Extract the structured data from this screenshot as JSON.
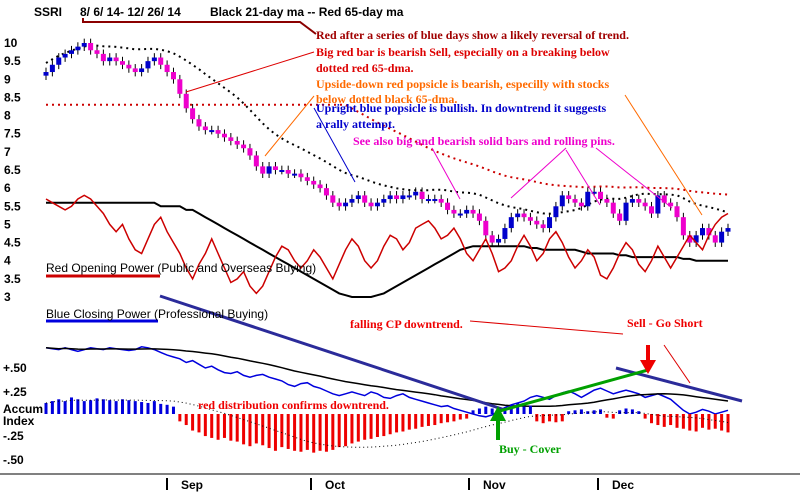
{
  "chart_data": {
    "type": "candlestick",
    "title": "SSRI  8/ 6/ 14- 12/ 26/ 14   Black 21-day ma --  Red 65-day ma",
    "ticker": "SSRI",
    "date_range": "8/ 6/ 14- 12/ 26/ 14",
    "legend_ma": "Black 21-day ma --  Red 65-day ma",
    "price_axis": {
      "ylim": [
        2.5,
        10.3
      ],
      "ticks": [
        "10",
        "9.5",
        "9",
        "8.5",
        "8",
        "7.5",
        "7",
        "6.5",
        "6",
        "5.5",
        "5",
        "4.5",
        "4",
        "3.5",
        "3"
      ]
    },
    "indicator_axis": {
      "ticks": [
        "+.50",
        "+.25",
        "Accum",
        "Index",
        "-.25",
        "-.50"
      ]
    },
    "months": [
      "Sep",
      "Oct",
      "Nov",
      "Dec"
    ],
    "colors": {
      "up": "#0000cc",
      "down": "#ee00cc",
      "ma65": "#cc0000",
      "ma21": "#000000",
      "cp_trend": "#2b2b9a",
      "green_trend": "#00a000"
    },
    "closes": [
      9.2,
      9.4,
      9.6,
      9.7,
      9.8,
      9.9,
      10.0,
      9.8,
      9.7,
      9.5,
      9.6,
      9.5,
      9.4,
      9.3,
      9.2,
      9.3,
      9.5,
      9.6,
      9.4,
      9.2,
      9.0,
      8.6,
      8.2,
      7.9,
      7.7,
      7.6,
      7.6,
      7.5,
      7.4,
      7.3,
      7.2,
      7.1,
      6.9,
      6.6,
      6.4,
      6.6,
      6.5,
      6.5,
      6.4,
      6.4,
      6.3,
      6.2,
      6.1,
      6.0,
      5.8,
      5.6,
      5.5,
      5.6,
      5.7,
      5.8,
      5.6,
      5.5,
      5.6,
      5.7,
      5.8,
      5.7,
      5.8,
      5.8,
      5.9,
      5.7,
      5.7,
      5.7,
      5.6,
      5.4,
      5.3,
      5.3,
      5.4,
      5.3,
      5.1,
      4.7,
      4.5,
      4.6,
      4.9,
      5.2,
      5.3,
      5.2,
      5.1,
      5.0,
      4.9,
      5.2,
      5.5,
      5.8,
      5.7,
      5.6,
      5.5,
      5.9,
      5.9,
      5.7,
      5.6,
      5.3,
      5.1,
      5.6,
      5.7,
      5.6,
      5.5,
      5.3,
      5.8,
      5.6,
      5.5,
      5.2,
      4.7,
      4.5,
      4.7,
      4.9,
      4.7,
      4.5,
      4.8,
      4.9
    ],
    "ma21": [
      5.6,
      5.6,
      5.6,
      5.6,
      5.6,
      5.6,
      5.6,
      5.6,
      5.6,
      5.6,
      5.6,
      5.6,
      5.6,
      5.6,
      5.6,
      5.6,
      5.6,
      5.6,
      5.5,
      5.5,
      5.5,
      5.5,
      5.4,
      5.4,
      5.3,
      5.2,
      5.1,
      5.0,
      4.9,
      4.8,
      4.7,
      4.6,
      4.5,
      4.4,
      4.3,
      4.2,
      4.1,
      4.0,
      3.9,
      3.8,
      3.7,
      3.6,
      3.5,
      3.4,
      3.3,
      3.2,
      3.1,
      3.05,
      3.0,
      3.0,
      3.0,
      3.0,
      3.05,
      3.1,
      3.2,
      3.3,
      3.4,
      3.5,
      3.6,
      3.7,
      3.8,
      3.9,
      4.0,
      4.1,
      4.2,
      4.3,
      4.35,
      4.4,
      4.4,
      4.4,
      4.4,
      4.4,
      4.4,
      4.4,
      4.4,
      4.4,
      4.35,
      4.35,
      4.3,
      4.3,
      4.3,
      4.3,
      4.3,
      4.3,
      4.25,
      4.2,
      4.2,
      4.2,
      4.2,
      4.2,
      4.15,
      4.15,
      4.1,
      4.1,
      4.1,
      4.1,
      4.1,
      4.1,
      4.1,
      4.1,
      4.05,
      4.05,
      4.0,
      4.0,
      4.0,
      4.0,
      4.0,
      4.0
    ],
    "opening_power": [
      5.7,
      5.6,
      5.5,
      5.4,
      5.5,
      5.7,
      5.8,
      5.7,
      5.5,
      5.3,
      5.0,
      4.8,
      5.0,
      4.6,
      4.3,
      4.2,
      4.6,
      5.0,
      5.2,
      4.8,
      4.5,
      4.2,
      3.8,
      3.5,
      3.9,
      4.2,
      4.6,
      4.2,
      3.8,
      3.4,
      3.5,
      3.7,
      3.3,
      3.1,
      3.3,
      3.7,
      4.1,
      4.4,
      4.3,
      4.0,
      3.8,
      4.0,
      4.3,
      4.1,
      3.8,
      3.5,
      3.9,
      4.3,
      4.6,
      4.4,
      4.0,
      3.8,
      4.0,
      4.4,
      4.7,
      4.6,
      4.3,
      4.5,
      4.9,
      5.0,
      5.1,
      4.9,
      4.6,
      4.7,
      4.9,
      4.6,
      4.2,
      4.0,
      4.3,
      4.6,
      4.2,
      3.7,
      3.8,
      4.0,
      4.4,
      4.7,
      4.4,
      4.0,
      4.2,
      4.6,
      4.8,
      4.5,
      4.1,
      3.8,
      4.0,
      4.3,
      4.1,
      3.6,
      3.5,
      3.8,
      4.2,
      4.5,
      4.3,
      3.9,
      3.7,
      4.0,
      4.4,
      4.1,
      3.8,
      4.1,
      4.4,
      4.7,
      4.5,
      4.3,
      4.7,
      5.0,
      5.2,
      5.3
    ],
    "closing_power": [
      0.72,
      0.71,
      0.7,
      0.72,
      0.7,
      0.68,
      0.7,
      0.72,
      0.71,
      0.7,
      0.72,
      0.71,
      0.7,
      0.69,
      0.7,
      0.73,
      0.72,
      0.7,
      0.67,
      0.64,
      0.62,
      0.6,
      0.56,
      0.58,
      0.54,
      0.5,
      0.52,
      0.48,
      0.45,
      0.44,
      0.46,
      0.42,
      0.4,
      0.42,
      0.43,
      0.4,
      0.38,
      0.36,
      0.32,
      0.3,
      0.33,
      0.34,
      0.3,
      0.28,
      0.25,
      0.22,
      0.2,
      0.22,
      0.24,
      0.22,
      0.2,
      0.24,
      0.22,
      0.18,
      0.17,
      0.2,
      0.22,
      0.18,
      0.16,
      0.14,
      0.12,
      0.1,
      0.08,
      0.09,
      0.06,
      0.04,
      0.02,
      0.0,
      -0.02,
      -0.03,
      -0.01,
      0.03,
      0.07,
      0.1,
      0.12,
      0.14,
      0.18,
      0.2,
      0.18,
      0.16,
      0.2,
      0.23,
      0.25,
      0.22,
      0.18,
      0.22,
      0.26,
      0.28,
      0.25,
      0.22,
      0.24,
      0.26,
      0.24,
      0.22,
      0.18,
      0.2,
      0.22,
      0.19,
      0.16,
      0.1,
      0.04,
      0.0,
      0.02,
      0.05,
      0.03,
      0.0,
      0.02,
      0.04
    ],
    "accum_index": [
      0.12,
      0.14,
      0.16,
      0.14,
      0.18,
      0.16,
      0.14,
      0.15,
      0.17,
      0.16,
      0.15,
      0.14,
      0.16,
      0.15,
      0.14,
      0.13,
      0.12,
      0.14,
      0.11,
      0.1,
      0.08,
      -0.08,
      -0.12,
      -0.18,
      -0.2,
      -0.24,
      -0.26,
      -0.28,
      -0.26,
      -0.29,
      -0.3,
      -0.33,
      -0.35,
      -0.32,
      -0.34,
      -0.37,
      -0.4,
      -0.36,
      -0.38,
      -0.4,
      -0.41,
      -0.39,
      -0.42,
      -0.4,
      -0.41,
      -0.39,
      -0.36,
      -0.35,
      -0.32,
      -0.3,
      -0.28,
      -0.27,
      -0.25,
      -0.24,
      -0.22,
      -0.2,
      -0.19,
      -0.17,
      -0.16,
      -0.14,
      -0.13,
      -0.12,
      -0.1,
      -0.09,
      -0.08,
      -0.06,
      -0.05,
      0.04,
      0.06,
      0.08,
      0.06,
      0.05,
      0.07,
      0.1,
      0.12,
      0.08,
      0.09,
      -0.08,
      -0.1,
      -0.08,
      -0.09,
      -0.08,
      0.03,
      0.04,
      0.05,
      0.03,
      0.04,
      0.05,
      -0.04,
      -0.05,
      0.04,
      0.06,
      0.05,
      0.03,
      -0.05,
      -0.1,
      -0.12,
      -0.14,
      -0.12,
      -0.15,
      -0.16,
      -0.18,
      -0.19,
      -0.15,
      -0.17,
      -0.16,
      -0.18,
      -0.2
    ],
    "indicator_labels": {
      "opening_power": "Red Opening Power (Public and Overseas Buying)",
      "closing_power": "Blue Closing Power (Professional Buying)"
    },
    "annotations": [
      "Red after a series of blue days show a likely reversal of trend.",
      "Big red bar is bearish Sell, especially on a breaking below",
      "dotted red 65-dma.",
      "Upside-down red popsicle is bearish, especilly with stocks",
      "below dotted black 65-dma.",
      "Upright blue popsicle is bullish.  In downtrend it suggests",
      "a rally attempt.",
      "See also big and bearish solid bars and rolling pins.",
      "falling CP downtrend.",
      "Sell - Go Short",
      "red distribution confirms downtrend.",
      "Buy - Cover"
    ]
  }
}
